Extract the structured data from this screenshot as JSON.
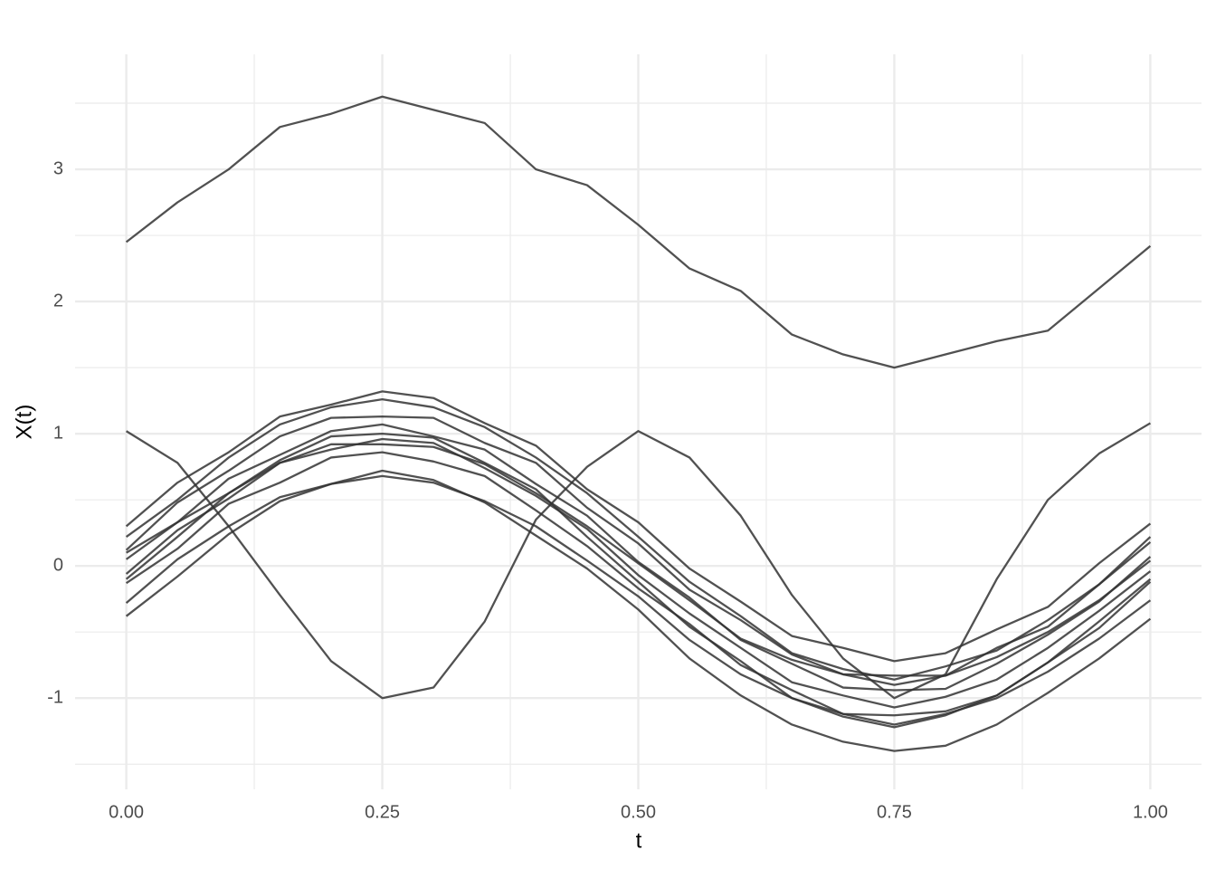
{
  "chart_data": {
    "type": "line",
    "xlabel": "t",
    "ylabel": "X(t)",
    "x": [
      0,
      0.05,
      0.1,
      0.15,
      0.2,
      0.25,
      0.3,
      0.35,
      0.4,
      0.45,
      0.5,
      0.55,
      0.6,
      0.65,
      0.7,
      0.75,
      0.8,
      0.85,
      0.9,
      0.95,
      1
    ],
    "color": "#333333",
    "series": [
      {
        "values": [
          2.45,
          2.75,
          3.0,
          3.32,
          3.42,
          3.55,
          3.45,
          3.35,
          3.0,
          2.88,
          2.58,
          2.25,
          2.08,
          1.75,
          1.6,
          1.5,
          1.6,
          1.7,
          1.78,
          2.1,
          2.42
        ]
      },
      {
        "values": [
          1.02,
          0.78,
          0.3,
          -0.22,
          -0.72,
          -1.0,
          -0.92,
          -0.42,
          0.35,
          0.75,
          1.02,
          0.82,
          0.38,
          -0.22,
          -0.7,
          -1.0,
          -0.82,
          -0.1,
          0.5,
          0.85,
          1.08
        ]
      },
      {
        "values": [
          0.3,
          0.63,
          0.86,
          1.13,
          1.22,
          1.32,
          1.27,
          1.08,
          0.91,
          0.58,
          0.33,
          -0.02,
          -0.27,
          -0.53,
          -0.62,
          -0.72,
          -0.66,
          -0.48,
          -0.31,
          0.02,
          0.32
        ]
      },
      {
        "values": [
          0.12,
          0.48,
          0.72,
          0.98,
          1.12,
          1.13,
          1.12,
          0.93,
          0.78,
          0.44,
          0.17,
          -0.18,
          -0.41,
          -0.67,
          -0.82,
          -0.83,
          -0.83,
          -0.62,
          -0.46,
          -0.14,
          0.18
        ]
      },
      {
        "values": [
          0.05,
          0.33,
          0.66,
          0.84,
          1.02,
          1.07,
          0.98,
          0.88,
          0.62,
          0.38,
          0.03,
          -0.24,
          -0.56,
          -0.74,
          -0.92,
          -0.94,
          -0.93,
          -0.74,
          -0.52,
          -0.27,
          0.07
        ]
      },
      {
        "values": [
          -0.06,
          0.27,
          0.51,
          0.78,
          0.88,
          0.96,
          0.93,
          0.74,
          0.53,
          0.28,
          -0.07,
          -0.36,
          -0.62,
          -0.88,
          -0.98,
          -1.07,
          -0.99,
          -0.86,
          -0.62,
          -0.34,
          -0.04
        ]
      },
      {
        "values": [
          -0.13,
          0.13,
          0.47,
          0.63,
          0.82,
          0.86,
          0.79,
          0.68,
          0.42,
          0.15,
          -0.17,
          -0.44,
          -0.75,
          -0.94,
          -1.12,
          -1.13,
          -1.1,
          -0.98,
          -0.73,
          -0.47,
          -0.12
        ]
      },
      {
        "values": [
          -0.28,
          0.05,
          0.3,
          0.52,
          0.62,
          0.68,
          0.63,
          0.49,
          0.3,
          0.04,
          -0.23,
          -0.56,
          -0.82,
          -1.0,
          -1.12,
          -1.2,
          -1.12,
          -1.0,
          -0.8,
          -0.55,
          -0.26
        ]
      },
      {
        "values": [
          -0.38,
          -0.08,
          0.24,
          0.49,
          0.62,
          0.72,
          0.65,
          0.48,
          0.23,
          -0.02,
          -0.33,
          -0.7,
          -0.98,
          -1.2,
          -1.33,
          -1.4,
          -1.36,
          -1.2,
          -0.96,
          -0.7,
          -0.4
        ]
      },
      {
        "values": [
          0.22,
          0.5,
          0.82,
          1.07,
          1.2,
          1.26,
          1.2,
          1.05,
          0.82,
          0.55,
          0.22,
          -0.12,
          -0.38,
          -0.66,
          -0.78,
          -0.86,
          -0.76,
          -0.64,
          -0.41,
          -0.14,
          0.22
        ]
      },
      {
        "values": [
          0.1,
          0.33,
          0.55,
          0.78,
          0.92,
          0.92,
          0.9,
          0.77,
          0.55,
          0.3,
          0.02,
          -0.26,
          -0.55,
          -0.71,
          -0.82,
          -0.9,
          -0.83,
          -0.69,
          -0.5,
          -0.26,
          0.04
        ]
      },
      {
        "values": [
          -0.1,
          0.22,
          0.55,
          0.8,
          0.98,
          1.0,
          0.97,
          0.78,
          0.58,
          0.22,
          -0.12,
          -0.46,
          -0.72,
          -1.0,
          -1.14,
          -1.22,
          -1.13,
          -0.98,
          -0.73,
          -0.42,
          -0.1
        ]
      }
    ],
    "xlim": [
      -0.05,
      1.05
    ],
    "ylim": [
      -1.69,
      3.87
    ],
    "xticks": [
      {
        "value": 0,
        "label": "0.00"
      },
      0.25,
      {
        "value": 0.5,
        "label": "0.50"
      },
      0.75,
      {
        "value": 1,
        "label": "1.00"
      }
    ],
    "yticks": [
      -1,
      0,
      1,
      2,
      3
    ],
    "x_minor_breaks": [
      0.125,
      0.375,
      0.625,
      0.875
    ],
    "y_minor_breaks": [
      -1.5,
      -0.5,
      0.5,
      1.5,
      2.5,
      3.5
    ],
    "grid": true
  }
}
